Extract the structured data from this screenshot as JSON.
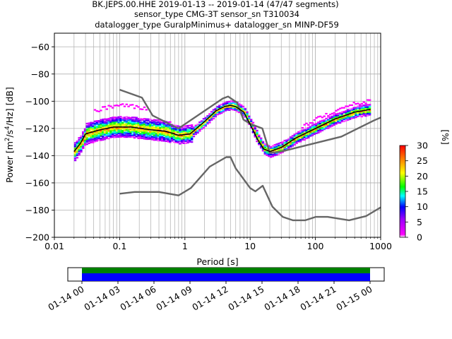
{
  "chart_data": [
    {
      "type": "heatmap",
      "title": [
        "BK.JEPS.00.HHE   2019-01-13 -- 2019-01-14  (47/47 segments)",
        "sensor_type CMG-3T sensor_sn T310034",
        "datalogger_type GuralpMinimus+ datalogger_sn MINP-DF59"
      ],
      "xlabel": "Period [s]",
      "ylabel": "Power [m²/s⁴/Hz] [dB]",
      "xscale": "log",
      "xlim": [
        0.01,
        1000
      ],
      "ylim": [
        -200,
        -50
      ],
      "xticks": [
        0.01,
        0.1,
        1,
        10,
        100,
        1000
      ],
      "xtick_labels": [
        "0.01",
        "0.1",
        "1",
        "10",
        "100",
        "1000"
      ],
      "yticks": [
        -200,
        -180,
        -160,
        -140,
        -120,
        -100,
        -80,
        -60
      ],
      "ytick_labels": [
        "−200",
        "−180",
        "−160",
        "−140",
        "−120",
        "−100",
        "−80",
        "−60"
      ],
      "grid": true,
      "colorbar": {
        "label": "[%]",
        "range": [
          0,
          30
        ],
        "ticks": [
          0,
          5,
          10,
          15,
          20,
          25,
          30
        ],
        "tick_labels": [
          "0",
          "5",
          "10",
          "15",
          "20",
          "25",
          "30"
        ],
        "colormap": "pqlx"
      },
      "series": [
        {
          "type": "line",
          "color": "#666666",
          "x": [
            0.1,
            0.22,
            0.32,
            0.8,
            3.8,
            4.6,
            6.3,
            7.9,
            10,
            15.4,
            20,
            30,
            250,
            800,
            1000
          ],
          "y": [
            -91.5,
            -97.4,
            -110.5,
            -120.0,
            -98.0,
            -96.5,
            -101.0,
            -113.5,
            -116.6,
            -120.0,
            -138.0,
            -137.0,
            -126.0,
            -114.0,
            -112.0
          ]
        },
        {
          "type": "line",
          "color": "#666666",
          "x": [
            0.1,
            0.17,
            0.4,
            0.8,
            1.24,
            2.4,
            4.3,
            5.0,
            6.0,
            10,
            12,
            15.6,
            21.9,
            31.6,
            45,
            70,
            101,
            154,
            328,
            600,
            1000
          ],
          "y": [
            -168.0,
            -166.7,
            -166.7,
            -169.2,
            -163.7,
            -148.1,
            -141.1,
            -141.1,
            -149.3,
            -163.8,
            -166.2,
            -162.1,
            -177.5,
            -185.0,
            -187.5,
            -187.5,
            -185.0,
            -185.0,
            -187.5,
            -184.4,
            -178.0
          ]
        },
        {
          "type": "line",
          "color": "#000000",
          "x": [
            0.02,
            0.025,
            0.03,
            0.05,
            0.08,
            0.15,
            0.3,
            0.5,
            0.8,
            1.2,
            2,
            3,
            4,
            5,
            6,
            8,
            10,
            13,
            16,
            20,
            30,
            50,
            100,
            200,
            400,
            700
          ],
          "y": [
            -137,
            -131,
            -124,
            -121,
            -119,
            -119,
            -121,
            -122,
            -125,
            -124,
            -115,
            -107,
            -104,
            -103,
            -104,
            -108,
            -117,
            -128,
            -135,
            -137,
            -134,
            -127,
            -120,
            -113,
            -108,
            -106
          ]
        }
      ]
    },
    {
      "type": "bar",
      "title": "",
      "x_ticks": [
        "01-14 00",
        "01-14 03",
        "01-14 06",
        "01-14 09",
        "01-14 12",
        "01-14 15",
        "01-14 18",
        "01-14 21",
        "01-15 00"
      ],
      "segments": [
        {
          "start": "01-14 00",
          "end": "01-15 00",
          "color": "#008000"
        },
        {
          "start": "01-14 00",
          "end": "01-15 00",
          "color": "#0000ff"
        }
      ]
    }
  ]
}
